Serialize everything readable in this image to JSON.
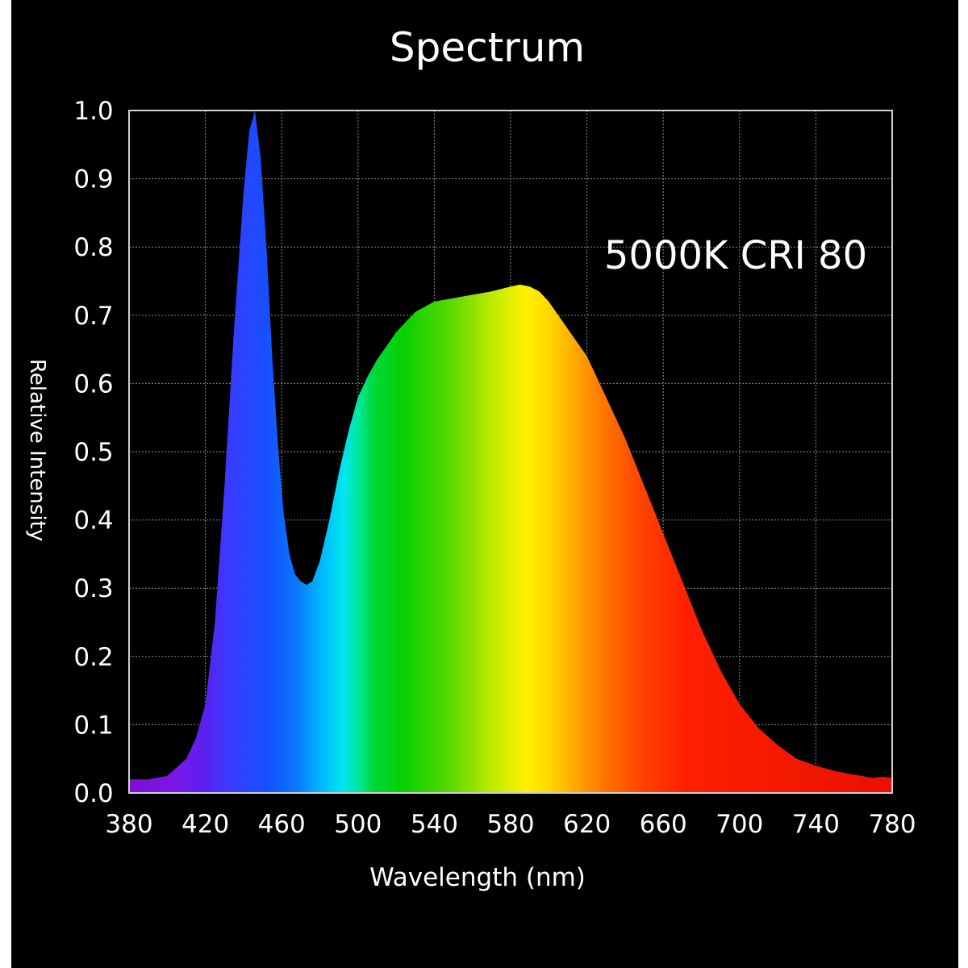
{
  "chart_data": {
    "type": "area",
    "title": "Spectrum",
    "annotation": "5000K CRI 80",
    "xlabel": "Wavelength (nm)",
    "ylabel": "Relative Intensity",
    "xlim": [
      380,
      780
    ],
    "ylim": [
      0.0,
      1.0
    ],
    "x_ticks": [
      "380",
      "420",
      "460",
      "500",
      "540",
      "580",
      "620",
      "660",
      "700",
      "740",
      "780"
    ],
    "y_ticks": [
      "0.0",
      "0.1",
      "0.2",
      "0.3",
      "0.4",
      "0.5",
      "0.6",
      "0.7",
      "0.8",
      "0.9",
      "1.0"
    ],
    "grid": true,
    "colors": {
      "background": "#000000",
      "grid": "#8a8a8a",
      "frame": "#d0d0d0",
      "text": "#ffffff"
    },
    "series": [
      {
        "x": [
          380,
          390,
          400,
          410,
          415,
          420,
          425,
          430,
          435,
          440,
          443,
          446,
          449,
          452,
          455,
          458,
          461,
          464,
          467,
          470,
          473,
          476,
          480,
          485,
          490,
          495,
          500,
          505,
          510,
          515,
          520,
          525,
          530,
          540,
          550,
          560,
          570,
          580,
          585,
          590,
          595,
          600,
          605,
          610,
          620,
          630,
          640,
          650,
          660,
          670,
          680,
          690,
          700,
          710,
          720,
          730,
          740,
          750,
          760,
          770,
          775,
          780
        ],
        "y": [
          0.02,
          0.02,
          0.025,
          0.05,
          0.08,
          0.13,
          0.25,
          0.45,
          0.68,
          0.88,
          0.97,
          1.0,
          0.93,
          0.8,
          0.64,
          0.51,
          0.41,
          0.35,
          0.32,
          0.31,
          0.305,
          0.31,
          0.34,
          0.4,
          0.47,
          0.53,
          0.58,
          0.61,
          0.635,
          0.655,
          0.675,
          0.69,
          0.705,
          0.72,
          0.725,
          0.73,
          0.735,
          0.742,
          0.745,
          0.742,
          0.735,
          0.72,
          0.7,
          0.68,
          0.64,
          0.58,
          0.52,
          0.45,
          0.38,
          0.31,
          0.24,
          0.18,
          0.13,
          0.095,
          0.07,
          0.05,
          0.04,
          0.032,
          0.027,
          0.022,
          0.024,
          0.022
        ]
      }
    ]
  }
}
